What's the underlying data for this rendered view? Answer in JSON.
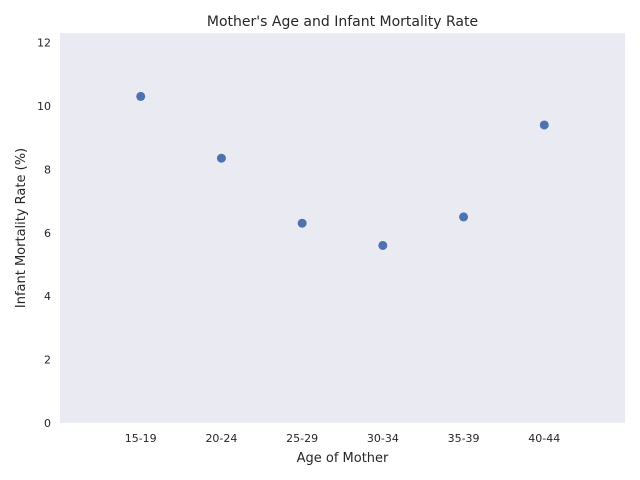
{
  "chart_data": {
    "type": "scatter",
    "title": "Mother's Age and Infant Mortality Rate",
    "xlabel": "Age of Mother",
    "ylabel": "Infant Mortality Rate (%)",
    "categories": [
      "15-19",
      "20-24",
      "25-29",
      "30-34",
      "35-39",
      "40-44"
    ],
    "values": [
      10.3,
      8.35,
      6.3,
      5.6,
      6.5,
      9.4
    ],
    "ylim": [
      0,
      12.3
    ],
    "yticks": [
      "0",
      "2",
      "4",
      "6",
      "8",
      "10",
      "12"
    ],
    "grid": false,
    "colors": {
      "background": "#eaeaf2",
      "marker": "#4c72b0"
    }
  }
}
